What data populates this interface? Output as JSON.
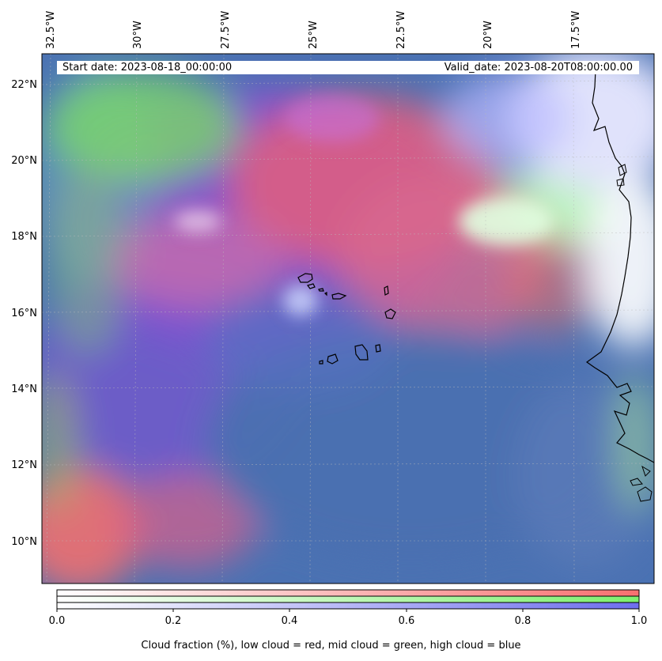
{
  "header": {
    "start_date": "Start date: 2023-08-18_00:00:00",
    "valid_date": "Valid_date: 2023-08-20T08:00:00.00"
  },
  "map": {
    "longitude_labels": [
      "32.5°W",
      "30°W",
      "27.5°W",
      "25°W",
      "22.5°W",
      "20°W",
      "17.5°W"
    ],
    "latitude_labels": [
      "22°N",
      "20°N",
      "18°N",
      "16°N",
      "14°N",
      "12°N",
      "10°N"
    ],
    "ocean_color": "#4a6fb0",
    "coastline_color": "#000000"
  },
  "colorbar": {
    "ticks": [
      "0.0",
      "0.2",
      "0.4",
      "0.6",
      "0.8",
      "1.0"
    ],
    "title": "Cloud fraction (%), low cloud = red, mid cloud = green, high cloud = blue",
    "low_color": "#ff6b6b",
    "mid_color": "#7cf27c",
    "high_color": "#6a6af0"
  }
}
